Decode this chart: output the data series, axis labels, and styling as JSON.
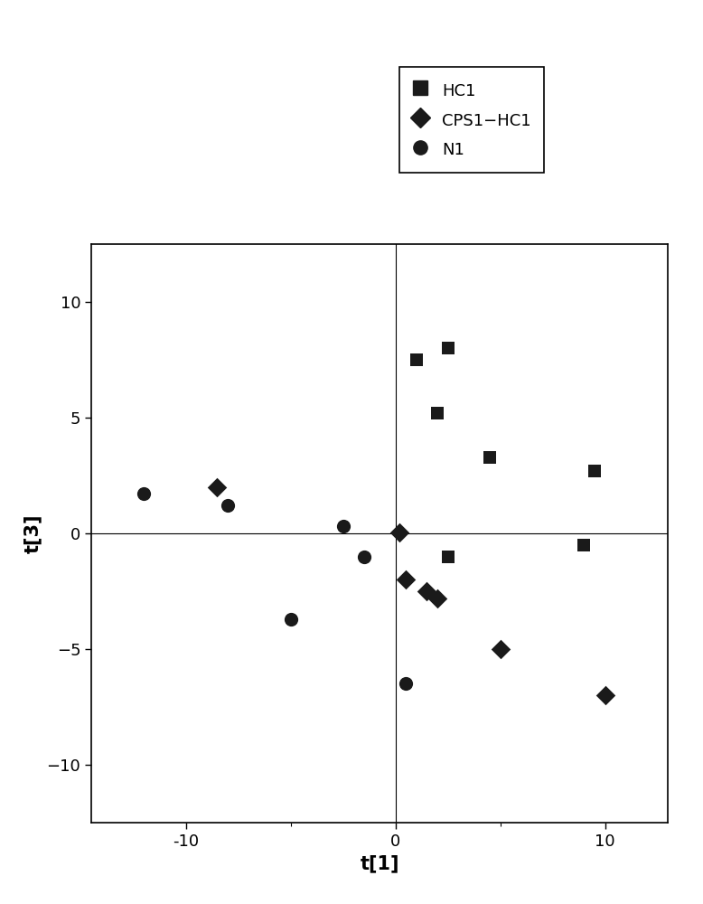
{
  "HC1": {
    "x": [
      1.0,
      2.5,
      2.0,
      4.5,
      9.5,
      2.5,
      9.0
    ],
    "y": [
      7.5,
      8.0,
      5.2,
      3.3,
      2.7,
      -1.0,
      -0.5
    ],
    "marker": "s",
    "color": "#1a1a1a",
    "label": "HC1",
    "size": 110
  },
  "CPS1_HC1": {
    "x": [
      -8.5,
      0.2,
      0.5,
      1.5,
      2.0,
      5.0,
      10.0
    ],
    "y": [
      2.0,
      0.05,
      -2.0,
      -2.5,
      -2.8,
      -5.0,
      -7.0
    ],
    "marker": "D",
    "color": "#1a1a1a",
    "label": "CPS1−HC1",
    "size": 120
  },
  "N1": {
    "x": [
      -12.0,
      -8.0,
      -5.0,
      -2.5,
      -1.5,
      0.5
    ],
    "y": [
      1.7,
      1.2,
      -3.7,
      0.3,
      -1.0,
      -6.5
    ],
    "marker": "o",
    "color": "#1a1a1a",
    "label": "N1",
    "size": 120
  },
  "xlim": [
    -14.5,
    13.0
  ],
  "ylim": [
    -12.5,
    12.5
  ],
  "xlabel": "t[1]",
  "ylabel": "t[3]",
  "xticks_major": [
    -10,
    0,
    10
  ],
  "xticks_minor": [
    -15,
    -5,
    5,
    15
  ],
  "yticks_major": [
    -10,
    -5,
    0,
    5,
    10
  ],
  "background_color": "#ffffff",
  "xlabel_fontsize": 15,
  "ylabel_fontsize": 15,
  "tick_fontsize": 13,
  "legend_fontsize": 13
}
